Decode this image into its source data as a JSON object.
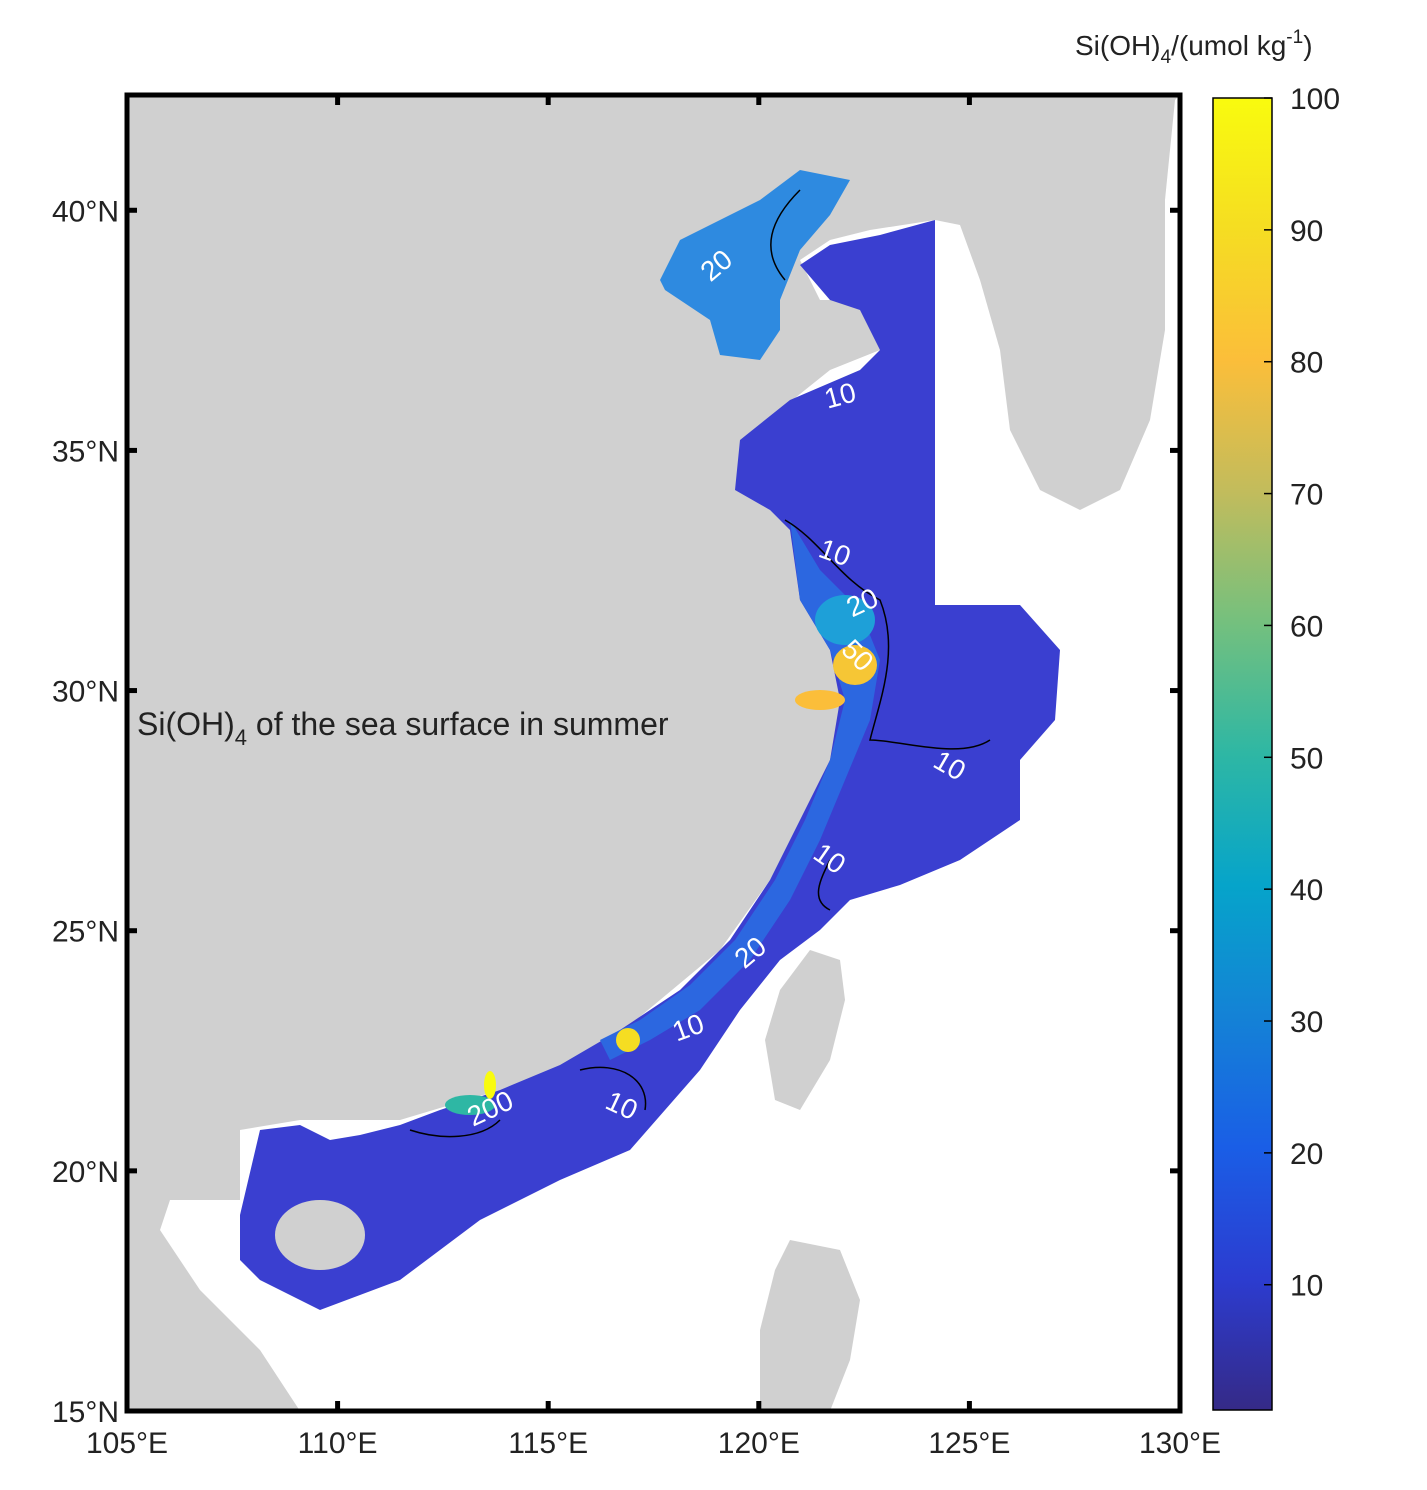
{
  "map": {
    "title": {
      "text": "Si(OH)",
      "sub": "4",
      "rest": " of the sea surface in summer"
    },
    "colorbar": {
      "label": {
        "base": "Si(OH)",
        "sub": "4",
        "mid": "/(umol kg",
        "sup": "-1",
        "end": ")"
      },
      "clim": [
        0.5,
        100
      ],
      "ticks": [
        10,
        20,
        30,
        40,
        50,
        60,
        70,
        80,
        90,
        100
      ]
    },
    "xlim": [
      105,
      130
    ],
    "ylim": [
      15,
      42.4
    ],
    "xticks": [
      {
        "value": 105,
        "label": "105°E"
      },
      {
        "value": 110,
        "label": "110°E"
      },
      {
        "value": 115,
        "label": "115°E"
      },
      {
        "value": 120,
        "label": "120°E"
      },
      {
        "value": 125,
        "label": "125°E"
      },
      {
        "value": 130,
        "label": "130°E"
      }
    ],
    "yticks": [
      {
        "value": 15,
        "label": "15°N"
      },
      {
        "value": 20,
        "label": "20°N"
      },
      {
        "value": 25,
        "label": "25°N"
      },
      {
        "value": 30,
        "label": "30°N"
      },
      {
        "value": 35,
        "label": "35°N"
      },
      {
        "value": 40,
        "label": "40°N"
      }
    ],
    "contour_labels": [
      "20",
      "10",
      "10",
      "20",
      "50",
      "10",
      "10",
      "20",
      "10",
      "10",
      "200"
    ]
  }
}
